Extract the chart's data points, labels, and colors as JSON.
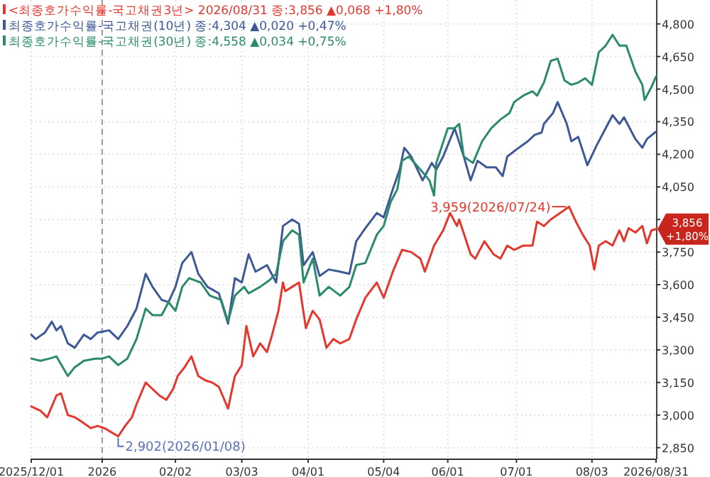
{
  "chart_data": {
    "type": "line",
    "xlim": [
      "2025-12-01",
      "2026-08-31"
    ],
    "xticks": [
      {
        "value": "2025-12-01",
        "label": "2025/12/01"
      },
      {
        "value": "2026-01-01",
        "label": "2026"
      },
      {
        "value": "2026-02-02",
        "label": "02/02"
      },
      {
        "value": "2026-03-03",
        "label": "03/03"
      },
      {
        "value": "2026-04-01",
        "label": "04/01"
      },
      {
        "value": "2026-05-04",
        "label": "05/04"
      },
      {
        "value": "2026-06-01",
        "label": "06/01"
      },
      {
        "value": "2026-07-01",
        "label": "07/01"
      },
      {
        "value": "2026-08-03",
        "label": "08/03"
      },
      {
        "value": "2026-08-31",
        "label": "2026/08/31"
      }
    ],
    "ylim": [
      2800,
      4910
    ],
    "yticks": [
      {
        "value": 2850,
        "label": "2,850"
      },
      {
        "value": 3000,
        "label": "3,000"
      },
      {
        "value": 3150,
        "label": "3,150"
      },
      {
        "value": 3300,
        "label": "3,300"
      },
      {
        "value": 3450,
        "label": "3,450"
      },
      {
        "value": 3600,
        "label": "3,600"
      },
      {
        "value": 3750,
        "label": "3,750"
      },
      {
        "value": 3900,
        "label": null
      },
      {
        "value": 4050,
        "label": "4,050"
      },
      {
        "value": 4200,
        "label": "4,200"
      },
      {
        "value": 4350,
        "label": "4,350"
      },
      {
        "value": 4500,
        "label": "4,500"
      },
      {
        "value": 4650,
        "label": "4,650"
      },
      {
        "value": 4800,
        "label": "4,800"
      }
    ],
    "grid": true,
    "legend": "top left",
    "ref_lines": [
      {
        "axis": "x",
        "value": "2026-01-01",
        "line_style": "dashed",
        "color": "#999999"
      }
    ],
    "series": [
      {
        "name": "<최종호가수익률-국고채권3년> 2026/08/31 종:3,856 ▲0,068 +1,80%",
        "color": "#e2382e",
        "x": [
          "2025-12-01",
          "2025-12-05",
          "2025-12-08",
          "2025-12-12",
          "2025-12-14",
          "2025-12-17",
          "2025-12-20",
          "2025-12-23",
          "2025-12-27",
          "2025-12-30",
          "2026-01-02",
          "2026-01-08",
          "2026-01-11",
          "2026-01-14",
          "2026-01-16",
          "2026-01-20",
          "2026-01-23",
          "2026-01-26",
          "2026-01-29",
          "2026-02-01",
          "2026-02-03",
          "2026-02-06",
          "2026-02-09",
          "2026-02-12",
          "2026-02-15",
          "2026-02-18",
          "2026-02-21",
          "2026-02-25",
          "2026-02-28",
          "2026-03-03",
          "2026-03-05",
          "2026-03-08",
          "2026-03-11",
          "2026-03-14",
          "2026-03-16",
          "2026-03-19",
          "2026-03-21",
          "2026-03-22",
          "2026-03-25",
          "2026-03-28",
          "2026-03-31",
          "2026-04-03",
          "2026-04-06",
          "2026-04-09",
          "2026-04-12",
          "2026-04-15",
          "2026-04-19",
          "2026-04-22",
          "2026-04-26",
          "2026-05-01",
          "2026-05-04",
          "2026-05-08",
          "2026-05-12",
          "2026-05-16",
          "2026-05-20",
          "2026-05-22",
          "2026-05-26",
          "2026-05-30",
          "2026-06-02",
          "2026-06-05",
          "2026-06-06",
          "2026-06-11",
          "2026-06-13",
          "2026-06-17",
          "2026-06-21",
          "2026-06-24",
          "2026-06-27",
          "2026-06-30",
          "2026-07-04",
          "2026-07-08",
          "2026-07-10",
          "2026-07-13",
          "2026-07-16",
          "2026-07-24",
          "2026-07-27",
          "2026-07-30",
          "2026-08-02",
          "2026-08-04",
          "2026-08-06",
          "2026-08-09",
          "2026-08-12",
          "2026-08-15",
          "2026-08-17",
          "2026-08-19",
          "2026-08-22",
          "2026-08-25",
          "2026-08-27",
          "2026-08-29",
          "2026-08-31"
        ],
        "values": [
          3040,
          3020,
          2990,
          3090,
          3100,
          3000,
          2990,
          2970,
          2940,
          2950,
          2940,
          2902,
          2950,
          2990,
          3050,
          3150,
          3120,
          3090,
          3070,
          3120,
          3180,
          3220,
          3270,
          3180,
          3160,
          3150,
          3130,
          3030,
          3180,
          3230,
          3410,
          3270,
          3330,
          3290,
          3360,
          3480,
          3610,
          3570,
          3590,
          3610,
          3400,
          3480,
          3440,
          3310,
          3350,
          3330,
          3350,
          3440,
          3540,
          3610,
          3540,
          3660,
          3760,
          3750,
          3720,
          3660,
          3780,
          3850,
          3930,
          3870,
          3900,
          3740,
          3720,
          3800,
          3740,
          3720,
          3780,
          3760,
          3780,
          3780,
          3890,
          3870,
          3900,
          3959,
          3890,
          3830,
          3780,
          3670,
          3780,
          3800,
          3780,
          3850,
          3800,
          3860,
          3840,
          3870,
          3790,
          3850,
          3856
        ]
      },
      {
        "name": "최종호가수익률-국고채권(10년) 종:4,304 ▲0,020 +0,47%",
        "color": "#3d5996",
        "x": [
          "2025-12-01",
          "2025-12-03",
          "2025-12-07",
          "2025-12-10",
          "2025-12-12",
          "2025-12-14",
          "2025-12-17",
          "2025-12-20",
          "2025-12-24",
          "2025-12-27",
          "2025-12-30",
          "2026-01-04",
          "2026-01-08",
          "2026-01-12",
          "2026-01-16",
          "2026-01-20",
          "2026-01-23",
          "2026-01-27",
          "2026-01-30",
          "2026-02-02",
          "2026-02-05",
          "2026-02-09",
          "2026-02-12",
          "2026-02-16",
          "2026-02-21",
          "2026-02-25",
          "2026-02-28",
          "2026-03-03",
          "2026-03-06",
          "2026-03-09",
          "2026-03-14",
          "2026-03-18",
          "2026-03-21",
          "2026-03-25",
          "2026-03-28",
          "2026-03-30",
          "2026-04-03",
          "2026-04-06",
          "2026-04-10",
          "2026-04-15",
          "2026-04-19",
          "2026-04-22",
          "2026-04-26",
          "2026-05-01",
          "2026-05-04",
          "2026-05-08",
          "2026-05-11",
          "2026-05-13",
          "2026-05-16",
          "2026-05-21",
          "2026-05-25",
          "2026-05-27",
          "2026-05-30",
          "2026-06-04",
          "2026-06-08",
          "2026-06-11",
          "2026-06-14",
          "2026-06-18",
          "2026-06-22",
          "2026-06-25",
          "2026-06-27",
          "2026-07-02",
          "2026-07-06",
          "2026-07-09",
          "2026-07-12",
          "2026-07-13",
          "2026-07-17",
          "2026-07-19",
          "2026-07-23",
          "2026-07-25",
          "2026-07-28",
          "2026-08-01",
          "2026-08-05",
          "2026-08-08",
          "2026-08-12",
          "2026-08-15",
          "2026-08-17",
          "2026-08-22",
          "2026-08-25",
          "2026-08-27",
          "2026-08-31"
        ],
        "values": [
          3370,
          3350,
          3380,
          3430,
          3390,
          3410,
          3330,
          3310,
          3370,
          3350,
          3380,
          3390,
          3350,
          3410,
          3490,
          3650,
          3590,
          3530,
          3520,
          3590,
          3700,
          3750,
          3650,
          3590,
          3560,
          3420,
          3630,
          3610,
          3740,
          3660,
          3690,
          3610,
          3870,
          3900,
          3880,
          3690,
          3750,
          3640,
          3670,
          3660,
          3650,
          3800,
          3860,
          3930,
          3910,
          4040,
          4130,
          4230,
          4190,
          4080,
          4160,
          4130,
          4190,
          4320,
          4190,
          4080,
          4170,
          4140,
          4140,
          4100,
          4190,
          4230,
          4260,
          4290,
          4300,
          4340,
          4390,
          4440,
          4340,
          4260,
          4280,
          4150,
          4240,
          4300,
          4380,
          4340,
          4370,
          4270,
          4230,
          4270,
          4304
        ]
      },
      {
        "name": "최종호가수익률-국고채권(30년) 종:4,558 ▲0,034 +0,75%",
        "color": "#2a8a6c",
        "x": [
          "2025-12-01",
          "2025-12-05",
          "2025-12-09",
          "2025-12-12",
          "2025-12-17",
          "2025-12-20",
          "2025-12-24",
          "2025-12-29",
          "2026-01-01",
          "2026-01-04",
          "2026-01-08",
          "2026-01-12",
          "2026-01-16",
          "2026-01-20",
          "2026-01-23",
          "2026-01-27",
          "2026-01-30",
          "2026-02-02",
          "2026-02-05",
          "2026-02-08",
          "2026-02-13",
          "2026-02-17",
          "2026-02-22",
          "2026-02-25",
          "2026-02-28",
          "2026-03-04",
          "2026-03-06",
          "2026-03-11",
          "2026-03-15",
          "2026-03-18",
          "2026-03-21",
          "2026-03-25",
          "2026-03-28",
          "2026-03-30",
          "2026-04-03",
          "2026-04-06",
          "2026-04-10",
          "2026-04-15",
          "2026-04-19",
          "2026-04-22",
          "2026-04-26",
          "2026-05-01",
          "2026-05-04",
          "2026-05-07",
          "2026-05-10",
          "2026-05-12",
          "2026-05-15",
          "2026-05-20",
          "2026-05-24",
          "2026-05-26",
          "2026-05-27",
          "2026-06-01",
          "2026-06-04",
          "2026-06-06",
          "2026-06-08",
          "2026-06-12",
          "2026-06-16",
          "2026-06-20",
          "2026-06-24",
          "2026-06-28",
          "2026-06-30",
          "2026-07-04",
          "2026-07-08",
          "2026-07-10",
          "2026-07-13",
          "2026-07-16",
          "2026-07-19",
          "2026-07-22",
          "2026-07-25",
          "2026-07-28",
          "2026-07-31",
          "2026-08-03",
          "2026-08-06",
          "2026-08-09",
          "2026-08-12",
          "2026-08-15",
          "2026-08-18",
          "2026-08-22",
          "2026-08-25",
          "2026-08-26",
          "2026-08-29",
          "2026-08-31"
        ],
        "values": [
          3260,
          3250,
          3260,
          3270,
          3180,
          3220,
          3250,
          3260,
          3260,
          3270,
          3230,
          3260,
          3350,
          3490,
          3460,
          3460,
          3520,
          3480,
          3590,
          3630,
          3610,
          3550,
          3530,
          3430,
          3550,
          3590,
          3560,
          3590,
          3620,
          3650,
          3800,
          3850,
          3830,
          3610,
          3720,
          3550,
          3590,
          3550,
          3590,
          3690,
          3700,
          3830,
          3870,
          3980,
          4040,
          4170,
          4190,
          4130,
          4080,
          4010,
          4160,
          4320,
          4320,
          4340,
          4190,
          4160,
          4260,
          4320,
          4360,
          4390,
          4440,
          4470,
          4490,
          4470,
          4530,
          4630,
          4640,
          4540,
          4520,
          4530,
          4550,
          4520,
          4670,
          4700,
          4750,
          4700,
          4700,
          4580,
          4520,
          4450,
          4510,
          4558
        ]
      }
    ],
    "annotations": [
      {
        "text": "2,902(2026/01/08)",
        "x": "2026-01-08",
        "y": 2902
      },
      {
        "text": "3,959(2026/07/24)",
        "x": "2026-07-24",
        "y": 3959
      },
      {
        "text": "3,856\n+1,80%",
        "x": "2026-08-31",
        "y": 3856
      }
    ]
  }
}
